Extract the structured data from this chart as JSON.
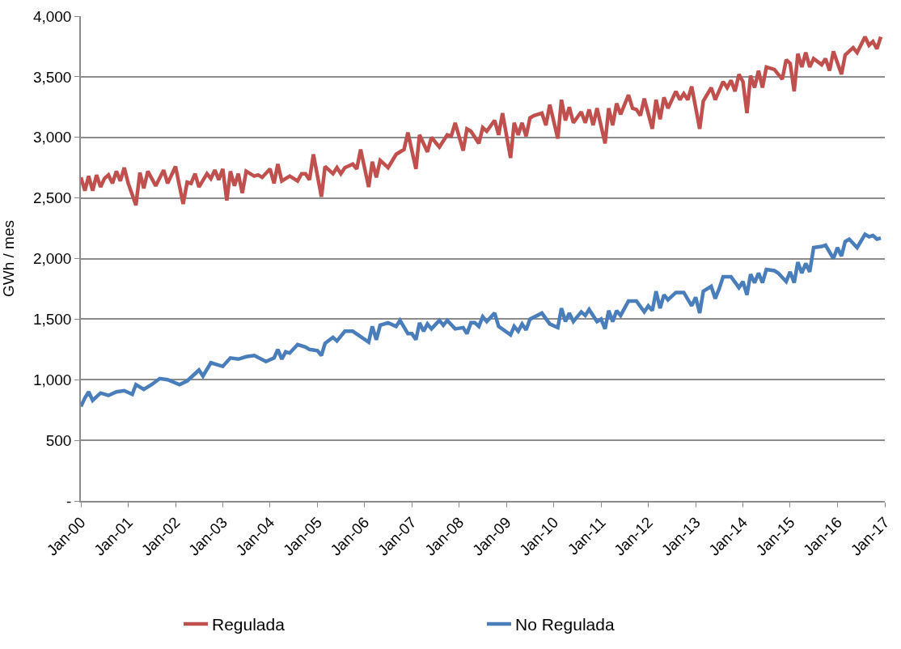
{
  "chart_data": {
    "type": "line",
    "ylabel": "GWh / mes",
    "ylim": [
      0,
      4000
    ],
    "yticks": [
      {
        "value": 0,
        "label": "-"
      },
      {
        "value": 500,
        "label": "500"
      },
      {
        "value": 1000,
        "label": "1,000"
      },
      {
        "value": 1500,
        "label": "1,500"
      },
      {
        "value": 2000,
        "label": "2,000"
      },
      {
        "value": 2500,
        "label": "2,500"
      },
      {
        "value": 3000,
        "label": "3,000"
      },
      {
        "value": 3500,
        "label": "3,500"
      },
      {
        "value": 4000,
        "label": "4,000"
      }
    ],
    "xlim": [
      "2000-01",
      "2017-01"
    ],
    "xticks": [
      {
        "value": "2000-01",
        "label": "Jan-00"
      },
      {
        "value": "2001-01",
        "label": "Jan-01"
      },
      {
        "value": "2002-01",
        "label": "Jan-02"
      },
      {
        "value": "2003-01",
        "label": "Jan-03"
      },
      {
        "value": "2004-01",
        "label": "Jan-04"
      },
      {
        "value": "2005-01",
        "label": "Jan-05"
      },
      {
        "value": "2006-01",
        "label": "Jan-06"
      },
      {
        "value": "2007-01",
        "label": "Jan-07"
      },
      {
        "value": "2008-01",
        "label": "Jan-08"
      },
      {
        "value": "2009-01",
        "label": "Jan-09"
      },
      {
        "value": "2010-01",
        "label": "Jan-10"
      },
      {
        "value": "2011-01",
        "label": "Jan-11"
      },
      {
        "value": "2012-01",
        "label": "Jan-12"
      },
      {
        "value": "2013-01",
        "label": "Jan-13"
      },
      {
        "value": "2014-01",
        "label": "Jan-14"
      },
      {
        "value": "2015-01",
        "label": "Jan-15"
      },
      {
        "value": "2016-01",
        "label": "Jan-16"
      },
      {
        "value": "2017-01",
        "label": "Jan-17"
      }
    ],
    "grid": "y",
    "legend": "bottom",
    "marker": "none",
    "line_style": "solid",
    "series": [
      {
        "name": "Regulada",
        "color": "#c0504d",
        "x": [
          "2000-01",
          "2000-02",
          "2000-03",
          "2000-04",
          "2000-05",
          "2000-06",
          "2000-07",
          "2000-08",
          "2000-09",
          "2000-10",
          "2000-11",
          "2000-12",
          "2001-01",
          "2001-03",
          "2001-04",
          "2001-05",
          "2001-06",
          "2001-08",
          "2001-10",
          "2001-11",
          "2002-01",
          "2002-03",
          "2002-04",
          "2002-05",
          "2002-06",
          "2002-07",
          "2002-09",
          "2002-10",
          "2002-11",
          "2002-12",
          "2003-01",
          "2003-02",
          "2003-03",
          "2003-04",
          "2003-05",
          "2003-06",
          "2003-07",
          "2003-09",
          "2003-10",
          "2003-11",
          "2004-01",
          "2004-02",
          "2004-03",
          "2004-04",
          "2004-06",
          "2004-08",
          "2004-09",
          "2004-10",
          "2004-11",
          "2004-12",
          "2005-02",
          "2005-03",
          "2005-05",
          "2005-06",
          "2005-07",
          "2005-08",
          "2005-10",
          "2005-11",
          "2005-12",
          "2006-02",
          "2006-03",
          "2006-04",
          "2006-05",
          "2006-07",
          "2006-09",
          "2006-10",
          "2006-11",
          "2006-12",
          "2007-02",
          "2007-03",
          "2007-05",
          "2007-06",
          "2007-08",
          "2007-10",
          "2007-11",
          "2007-12",
          "2008-02",
          "2008-03",
          "2008-04",
          "2008-06",
          "2008-07",
          "2008-08",
          "2008-10",
          "2008-11",
          "2008-12",
          "2009-02",
          "2009-03",
          "2009-04",
          "2009-05",
          "2009-06",
          "2009-07",
          "2009-08",
          "2009-10",
          "2009-11",
          "2009-12",
          "2010-02",
          "2010-03",
          "2010-04",
          "2010-05",
          "2010-06",
          "2010-08",
          "2010-09",
          "2010-10",
          "2010-11",
          "2010-12",
          "2011-02",
          "2011-03",
          "2011-04",
          "2011-05",
          "2011-06",
          "2011-08",
          "2011-09",
          "2011-10",
          "2011-11",
          "2011-12",
          "2012-02",
          "2012-03",
          "2012-04",
          "2012-05",
          "2012-06",
          "2012-08",
          "2012-09",
          "2012-10",
          "2012-11",
          "2012-12",
          "2013-02",
          "2013-03",
          "2013-05",
          "2013-06",
          "2013-08",
          "2013-09",
          "2013-10",
          "2013-11",
          "2013-12",
          "2014-01",
          "2014-02",
          "2014-03",
          "2014-04",
          "2014-05",
          "2014-06",
          "2014-07",
          "2014-09",
          "2014-10",
          "2014-11",
          "2014-12",
          "2015-01",
          "2015-02",
          "2015-03",
          "2015-04",
          "2015-05",
          "2015-06",
          "2015-07",
          "2015-09",
          "2015-10",
          "2015-11",
          "2015-12",
          "2016-02",
          "2016-03",
          "2016-05",
          "2016-06",
          "2016-08",
          "2016-09",
          "2016-10",
          "2016-11",
          "2016-12"
        ],
        "values": [
          2670,
          2560,
          2680,
          2560,
          2690,
          2590,
          2660,
          2690,
          2620,
          2720,
          2640,
          2750,
          2620,
          2440,
          2710,
          2580,
          2720,
          2600,
          2730,
          2620,
          2760,
          2450,
          2630,
          2620,
          2700,
          2590,
          2700,
          2660,
          2730,
          2650,
          2740,
          2480,
          2720,
          2600,
          2700,
          2540,
          2720,
          2680,
          2690,
          2670,
          2740,
          2620,
          2780,
          2640,
          2680,
          2640,
          2700,
          2700,
          2650,
          2860,
          2510,
          2760,
          2700,
          2750,
          2700,
          2750,
          2780,
          2740,
          2900,
          2590,
          2800,
          2670,
          2810,
          2750,
          2860,
          2880,
          2900,
          3040,
          2740,
          3020,
          2880,
          3000,
          2920,
          3020,
          3010,
          3120,
          2890,
          3070,
          3050,
          2950,
          3080,
          3050,
          3140,
          3020,
          3200,
          2830,
          3120,
          3020,
          3120,
          3010,
          3160,
          3180,
          3200,
          3100,
          3270,
          2990,
          3310,
          3140,
          3250,
          3120,
          3210,
          3120,
          3230,
          3100,
          3240,
          2950,
          3240,
          3100,
          3280,
          3190,
          3350,
          3240,
          3230,
          3180,
          3320,
          3070,
          3310,
          3150,
          3330,
          3240,
          3380,
          3310,
          3360,
          3310,
          3420,
          3070,
          3300,
          3410,
          3310,
          3460,
          3410,
          3470,
          3380,
          3520,
          3460,
          3200,
          3510,
          3410,
          3550,
          3410,
          3580,
          3560,
          3520,
          3480,
          3640,
          3610,
          3380,
          3690,
          3580,
          3700,
          3580,
          3650,
          3600,
          3650,
          3550,
          3710,
          3520,
          3680,
          3740,
          3700,
          3830,
          3760,
          3790,
          3730,
          3830
        ]
      },
      {
        "name": "No Regulada",
        "color": "#4a7ebb",
        "x": [
          "2000-01",
          "2000-02",
          "2000-03",
          "2000-04",
          "2000-06",
          "2000-08",
          "2000-10",
          "2000-12",
          "2001-02",
          "2001-03",
          "2001-05",
          "2001-07",
          "2001-09",
          "2001-11",
          "2002-02",
          "2002-04",
          "2002-06",
          "2002-07",
          "2002-08",
          "2002-10",
          "2003-01",
          "2003-03",
          "2003-05",
          "2003-07",
          "2003-09",
          "2003-12",
          "2004-02",
          "2004-03",
          "2004-04",
          "2004-05",
          "2004-06",
          "2004-08",
          "2004-10",
          "2004-11",
          "2005-01",
          "2005-02",
          "2005-03",
          "2005-05",
          "2005-06",
          "2005-08",
          "2005-10",
          "2006-02",
          "2006-03",
          "2006-04",
          "2006-05",
          "2006-07",
          "2006-09",
          "2006-10",
          "2006-12",
          "2007-01",
          "2007-02",
          "2007-03",
          "2007-04",
          "2007-05",
          "2007-06",
          "2007-08",
          "2007-09",
          "2007-10",
          "2007-12",
          "2008-02",
          "2008-03",
          "2008-04",
          "2008-05",
          "2008-06",
          "2008-07",
          "2008-08",
          "2008-10",
          "2008-11",
          "2009-02",
          "2009-03",
          "2009-04",
          "2009-05",
          "2009-06",
          "2009-07",
          "2009-10",
          "2009-12",
          "2010-02",
          "2010-03",
          "2010-04",
          "2010-05",
          "2010-06",
          "2010-08",
          "2010-09",
          "2010-10",
          "2010-12",
          "2011-01",
          "2011-02",
          "2011-03",
          "2011-04",
          "2011-05",
          "2011-06",
          "2011-08",
          "2011-10",
          "2011-12",
          "2012-01",
          "2012-02",
          "2012-03",
          "2012-04",
          "2012-05",
          "2012-06",
          "2012-08",
          "2012-10",
          "2012-12",
          "2013-01",
          "2013-02",
          "2013-03",
          "2013-05",
          "2013-06",
          "2013-07",
          "2013-08",
          "2013-10",
          "2013-12",
          "2014-01",
          "2014-02",
          "2014-03",
          "2014-04",
          "2014-05",
          "2014-06",
          "2014-07",
          "2014-09",
          "2014-10",
          "2014-12",
          "2015-01",
          "2015-02",
          "2015-03",
          "2015-04",
          "2015-05",
          "2015-06",
          "2015-07",
          "2015-09",
          "2015-10",
          "2015-12",
          "2016-01",
          "2016-02",
          "2016-03",
          "2016-04",
          "2016-06",
          "2016-08",
          "2016-09",
          "2016-10",
          "2016-11",
          "2016-12"
        ],
        "values": [
          780,
          850,
          900,
          830,
          890,
          870,
          900,
          910,
          880,
          960,
          920,
          960,
          1010,
          1000,
          960,
          990,
          1050,
          1080,
          1030,
          1140,
          1110,
          1180,
          1170,
          1190,
          1200,
          1150,
          1180,
          1250,
          1170,
          1230,
          1220,
          1290,
          1270,
          1250,
          1240,
          1200,
          1300,
          1350,
          1320,
          1400,
          1400,
          1310,
          1440,
          1330,
          1450,
          1470,
          1440,
          1490,
          1380,
          1380,
          1330,
          1470,
          1400,
          1460,
          1420,
          1490,
          1450,
          1490,
          1420,
          1430,
          1380,
          1470,
          1470,
          1440,
          1520,
          1480,
          1550,
          1440,
          1370,
          1440,
          1400,
          1460,
          1410,
          1500,
          1550,
          1460,
          1430,
          1590,
          1480,
          1550,
          1480,
          1560,
          1530,
          1580,
          1480,
          1500,
          1420,
          1570,
          1480,
          1570,
          1530,
          1650,
          1650,
          1560,
          1610,
          1570,
          1730,
          1590,
          1700,
          1660,
          1720,
          1720,
          1610,
          1680,
          1550,
          1730,
          1770,
          1670,
          1750,
          1850,
          1850,
          1760,
          1810,
          1700,
          1870,
          1800,
          1880,
          1800,
          1910,
          1900,
          1880,
          1810,
          1890,
          1800,
          1970,
          1880,
          1960,
          1890,
          2090,
          2100,
          2110,
          2000,
          2090,
          2020,
          2140,
          2160,
          2090,
          2200,
          2180,
          2190,
          2160,
          2170
        ]
      }
    ]
  }
}
